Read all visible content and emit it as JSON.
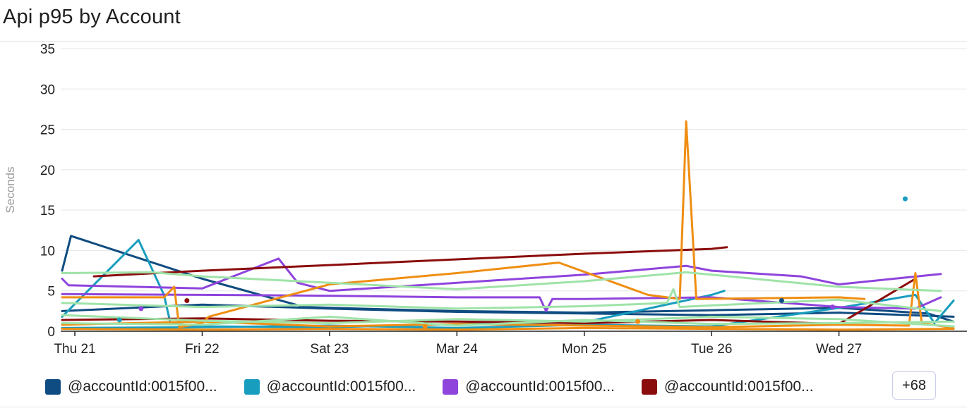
{
  "title": "Api p95 by Account",
  "more_label": "+68",
  "colors": {
    "navy": "#0f4c81",
    "teal": "#199dbf",
    "purple": "#8f44dc",
    "maroon": "#8b0c0c",
    "orange": "#ef8e12",
    "mint": "#9fe3a8",
    "grid": "#e6e6e6"
  },
  "chart_data": {
    "type": "line",
    "title": "Api p95 by Account",
    "ylabel": "Seconds",
    "xlabel": "",
    "ylim": [
      0,
      35
    ],
    "xlim": [
      -0.1,
      6.95
    ],
    "yticks": [
      0,
      5,
      10,
      15,
      20,
      25,
      30,
      35
    ],
    "xticks": [
      {
        "x": 0,
        "label": "Thu 21"
      },
      {
        "x": 1,
        "label": "Fri 22"
      },
      {
        "x": 2,
        "label": "Sat 23"
      },
      {
        "x": 3,
        "label": "Mar 24"
      },
      {
        "x": 4,
        "label": "Mon 25"
      },
      {
        "x": 5,
        "label": "Tue 26"
      },
      {
        "x": 6,
        "label": "Wed 27"
      }
    ],
    "grid": true,
    "legend_position": "bottom",
    "legend": [
      {
        "label": "@accountId:0015f00...",
        "color": "#0f4c81"
      },
      {
        "label": "@accountId:0015f00...",
        "color": "#199dbf"
      },
      {
        "label": "@accountId:0015f00...",
        "color": "#8f44dc"
      },
      {
        "label": "@accountId:0015f00...",
        "color": "#8b0c0c"
      }
    ],
    "series": [
      {
        "color": "#0f4c81",
        "points": [
          [
            -0.1,
            7.5
          ],
          [
            -0.03,
            11.8
          ],
          [
            1.0,
            6.5
          ],
          [
            1.8,
            3.0
          ],
          [
            2.0,
            2.9
          ],
          [
            3.0,
            2.5
          ],
          [
            4.0,
            2.3
          ],
          [
            5.0,
            2.6
          ],
          [
            6.0,
            2.9
          ],
          [
            6.7,
            2.2
          ],
          [
            6.9,
            1.2
          ]
        ]
      },
      {
        "color": "#0f4c81",
        "points": [
          [
            -0.1,
            2.5
          ],
          [
            1.0,
            3.3
          ],
          [
            2.0,
            2.8
          ],
          [
            3.0,
            2.4
          ],
          [
            4.0,
            2.2
          ],
          [
            5.0,
            2.0
          ],
          [
            6.0,
            2.3
          ],
          [
            6.9,
            1.8
          ]
        ]
      },
      {
        "color": "#199dbf",
        "points": [
          [
            -0.1,
            1.8
          ],
          [
            0.5,
            11.3
          ],
          [
            0.7,
            4.5
          ],
          [
            0.75,
            1.0
          ],
          [
            1.0,
            0.6
          ],
          [
            2.0,
            0.5
          ],
          [
            3.0,
            0.9
          ],
          [
            4.0,
            1.1
          ],
          [
            5.0,
            4.5
          ],
          [
            5.1,
            5.0
          ]
        ]
      },
      {
        "color": "#199dbf",
        "points": [
          [
            -0.1,
            0.4
          ],
          [
            1.0,
            0.5
          ],
          [
            2.0,
            0.7
          ],
          [
            3.0,
            0.4
          ],
          [
            4.0,
            0.8
          ],
          [
            5.0,
            0.6
          ],
          [
            6.0,
            2.9
          ],
          [
            6.6,
            4.5
          ],
          [
            6.75,
            1.0
          ],
          [
            6.9,
            3.8
          ]
        ]
      },
      {
        "color": "#8f44dc",
        "points": [
          [
            -0.1,
            6.5
          ],
          [
            -0.05,
            5.7
          ],
          [
            1.0,
            5.3
          ],
          [
            1.6,
            9.0
          ],
          [
            1.75,
            6.0
          ],
          [
            2.0,
            5.0
          ],
          [
            3.0,
            6.0
          ],
          [
            4.0,
            7.0
          ],
          [
            4.8,
            8.1
          ],
          [
            5.0,
            7.5
          ],
          [
            5.7,
            6.8
          ],
          [
            6.0,
            5.8
          ],
          [
            6.8,
            7.1
          ]
        ]
      },
      {
        "color": "#8f44dc",
        "points": [
          [
            -0.1,
            4.6
          ],
          [
            1.0,
            4.5
          ],
          [
            2.0,
            4.4
          ],
          [
            3.0,
            4.2
          ],
          [
            3.65,
            4.2
          ],
          [
            3.7,
            2.5
          ],
          [
            3.75,
            4.0
          ],
          [
            4.0,
            4.0
          ],
          [
            5.0,
            4.2
          ],
          [
            6.0,
            3.0
          ],
          [
            6.6,
            2.8
          ],
          [
            6.8,
            4.2
          ]
        ]
      },
      {
        "color": "#8b0c0c",
        "points": [
          [
            0.15,
            6.8
          ],
          [
            1.0,
            7.5
          ],
          [
            2.0,
            8.2
          ],
          [
            3.0,
            8.9
          ],
          [
            4.0,
            9.6
          ],
          [
            5.0,
            10.2
          ],
          [
            5.12,
            10.4
          ]
        ]
      },
      {
        "color": "#8b0c0c",
        "points": [
          [
            -0.1,
            1.4
          ],
          [
            1.0,
            1.6
          ],
          [
            2.0,
            1.3
          ],
          [
            3.0,
            1.2
          ],
          [
            4.0,
            1.0
          ],
          [
            5.0,
            1.4
          ],
          [
            6.0,
            0.9
          ],
          [
            6.6,
            6.5
          ]
        ]
      },
      {
        "color": "#ef8e12",
        "points": [
          [
            -0.1,
            4.2
          ],
          [
            0.7,
            4.2
          ],
          [
            0.78,
            5.5
          ],
          [
            0.82,
            0.5
          ],
          [
            1.0,
            1.0
          ],
          [
            1.05,
            1.8
          ],
          [
            2.0,
            5.8
          ],
          [
            3.0,
            7.2
          ],
          [
            3.8,
            8.5
          ],
          [
            4.5,
            4.5
          ],
          [
            4.75,
            4.0
          ],
          [
            4.8,
            26.0
          ],
          [
            4.88,
            4.0
          ],
          [
            6.0,
            4.2
          ],
          [
            6.2,
            4.0
          ]
        ]
      },
      {
        "color": "#ef8e12",
        "points": [
          [
            -0.1,
            0.8
          ],
          [
            1.0,
            1.2
          ],
          [
            2.0,
            0.6
          ],
          [
            3.0,
            0.9
          ],
          [
            4.0,
            0.7
          ],
          [
            5.0,
            0.5
          ],
          [
            6.0,
            0.8
          ],
          [
            6.55,
            0.7
          ],
          [
            6.6,
            7.2
          ],
          [
            6.65,
            1.0
          ],
          [
            6.9,
            0.4
          ]
        ]
      },
      {
        "color": "#ef8e12",
        "points": [
          [
            -0.1,
            0.3
          ],
          [
            1.0,
            0.2
          ],
          [
            2.0,
            0.3
          ],
          [
            3.0,
            0.2
          ],
          [
            4.0,
            0.4
          ],
          [
            5.0,
            0.3
          ],
          [
            6.0,
            0.2
          ],
          [
            6.9,
            0.3
          ]
        ]
      },
      {
        "color": "#9fe3a8",
        "points": [
          [
            -0.1,
            7.2
          ],
          [
            0.6,
            7.3
          ],
          [
            1.0,
            6.8
          ],
          [
            2.0,
            6.0
          ],
          [
            3.0,
            5.2
          ],
          [
            4.0,
            6.2
          ],
          [
            4.8,
            7.3
          ],
          [
            5.0,
            7.0
          ],
          [
            6.0,
            5.5
          ],
          [
            6.8,
            5.0
          ]
        ]
      },
      {
        "color": "#9fe3a8",
        "points": [
          [
            -0.1,
            3.5
          ],
          [
            1.0,
            3.0
          ],
          [
            2.0,
            3.3
          ],
          [
            3.0,
            2.8
          ],
          [
            4.0,
            3.1
          ],
          [
            4.65,
            3.5
          ],
          [
            4.7,
            5.2
          ],
          [
            4.75,
            3.0
          ],
          [
            5.0,
            3.2
          ],
          [
            6.0,
            3.9
          ],
          [
            6.8,
            2.5
          ]
        ]
      },
      {
        "color": "#9fe3a8",
        "points": [
          [
            -0.1,
            2.0
          ],
          [
            1.0,
            1.3
          ],
          [
            2.0,
            1.0
          ],
          [
            3.0,
            1.5
          ],
          [
            4.0,
            1.2
          ],
          [
            5.0,
            1.8
          ],
          [
            6.0,
            1.5
          ],
          [
            6.9,
            0.6
          ]
        ]
      },
      {
        "color": "#9fe3a8",
        "points": [
          [
            -0.1,
            1.0
          ],
          [
            1.0,
            0.8
          ],
          [
            2.0,
            1.8
          ],
          [
            3.0,
            0.7
          ],
          [
            4.0,
            1.4
          ],
          [
            5.0,
            0.9
          ],
          [
            6.0,
            1.0
          ],
          [
            6.9,
            1.2
          ]
        ]
      }
    ],
    "points": [
      {
        "x": 0.35,
        "y": 1.4,
        "color": "#199dbf"
      },
      {
        "x": 0.52,
        "y": 2.8,
        "color": "#8f44dc"
      },
      {
        "x": 0.88,
        "y": 3.8,
        "color": "#8b0c0c"
      },
      {
        "x": 2.75,
        "y": 0.6,
        "color": "#ef8e12"
      },
      {
        "x": 4.42,
        "y": 1.2,
        "color": "#ef8e12"
      },
      {
        "x": 5.55,
        "y": 3.8,
        "color": "#0f4c81"
      },
      {
        "x": 5.95,
        "y": 3.0,
        "color": "#8f44dc"
      },
      {
        "x": 6.52,
        "y": 16.4,
        "color": "#199dbf"
      }
    ]
  }
}
